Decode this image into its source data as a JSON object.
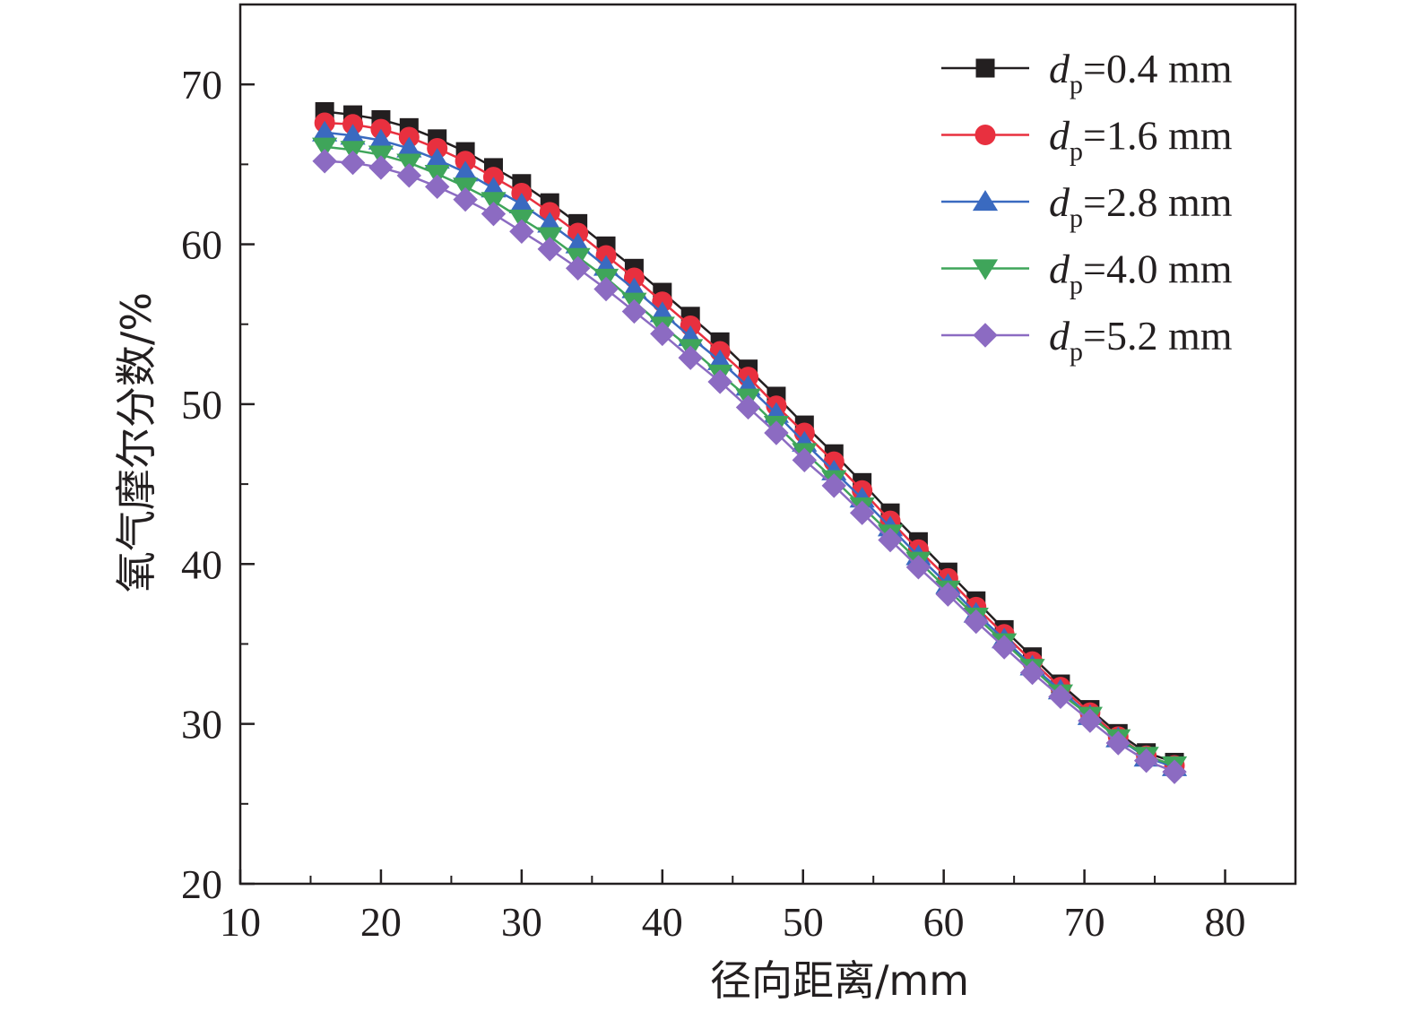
{
  "chart_data": {
    "type": "line",
    "xlabel": "径向距离/mm",
    "ylabel": "氧气摩尔分数/%",
    "xlim": [
      10,
      85
    ],
    "ylim": [
      20,
      75
    ],
    "xticks": [
      10,
      20,
      30,
      40,
      50,
      60,
      70,
      80
    ],
    "yticks": [
      20,
      30,
      40,
      50,
      60,
      70
    ],
    "xtick_labels": [
      "10",
      "20",
      "30",
      "40",
      "50",
      "60",
      "70",
      "80"
    ],
    "ytick_labels": [
      "20",
      "30",
      "40",
      "50",
      "60",
      "70"
    ],
    "grid": false,
    "legend_position": "top-right",
    "x": [
      16.0,
      18.0,
      20.0,
      22.0,
      24.0,
      26.0,
      28.0,
      30.0,
      32.0,
      34.0,
      36.0,
      38.0,
      40.0,
      42.0,
      44.1,
      46.1,
      48.1,
      50.1,
      52.2,
      54.2,
      56.2,
      58.2,
      60.3,
      62.3,
      64.3,
      66.3,
      68.3,
      70.4,
      72.4,
      74.4,
      76.4
    ],
    "series": [
      {
        "name": "d",
        "name_sub": "p",
        "name_rest": "=0.4 mm",
        "color": "#231f20",
        "marker": "square",
        "values": [
          68.3,
          68.1,
          67.8,
          67.3,
          66.6,
          65.8,
          64.8,
          63.8,
          62.6,
          61.3,
          59.9,
          58.5,
          57.0,
          55.5,
          53.9,
          52.2,
          50.5,
          48.7,
          46.9,
          45.1,
          43.2,
          41.4,
          39.5,
          37.7,
          35.9,
          34.2,
          32.5,
          30.9,
          29.4,
          28.2,
          27.6
        ]
      },
      {
        "name": "d",
        "name_sub": "p",
        "name_rest": "=1.6 mm",
        "color": "#e8303f",
        "marker": "circle",
        "values": [
          67.6,
          67.5,
          67.2,
          66.7,
          66.0,
          65.2,
          64.2,
          63.2,
          62.0,
          60.7,
          59.3,
          57.9,
          56.4,
          54.9,
          53.3,
          51.7,
          49.9,
          48.2,
          46.4,
          44.6,
          42.7,
          40.9,
          39.1,
          37.3,
          35.6,
          33.9,
          32.3,
          30.7,
          29.2,
          28.0,
          27.4
        ]
      },
      {
        "name": "d",
        "name_sub": "p",
        "name_rest": "=2.8 mm",
        "color": "#3a6ac0",
        "marker": "triangle-up",
        "values": [
          67.0,
          66.8,
          66.5,
          66.0,
          65.3,
          64.5,
          63.5,
          62.5,
          61.3,
          60.0,
          58.6,
          57.2,
          55.7,
          54.2,
          52.7,
          51.1,
          49.4,
          47.6,
          45.8,
          44.1,
          42.3,
          40.5,
          38.7,
          36.9,
          35.3,
          33.6,
          32.1,
          30.5,
          29.1,
          27.9,
          27.3
        ]
      },
      {
        "name": "d",
        "name_sub": "p",
        "name_rest": "=4.0 mm",
        "color": "#3fa55a",
        "marker": "triangle-down",
        "values": [
          66.1,
          65.9,
          65.6,
          65.1,
          64.4,
          63.6,
          62.7,
          61.6,
          60.5,
          59.2,
          57.9,
          56.4,
          54.9,
          53.5,
          51.9,
          50.4,
          48.7,
          47.0,
          45.3,
          43.6,
          41.9,
          40.2,
          38.4,
          36.7,
          35.1,
          33.5,
          31.9,
          30.5,
          29.1,
          28.0,
          27.4
        ]
      },
      {
        "name": "d",
        "name_sub": "p",
        "name_rest": "=5.2 mm",
        "color": "#8c6bc2",
        "marker": "diamond",
        "values": [
          65.2,
          65.1,
          64.8,
          64.3,
          63.6,
          62.8,
          61.9,
          60.8,
          59.7,
          58.5,
          57.2,
          55.8,
          54.4,
          52.9,
          51.4,
          49.8,
          48.2,
          46.5,
          44.9,
          43.2,
          41.5,
          39.8,
          38.1,
          36.4,
          34.8,
          33.2,
          31.7,
          30.2,
          28.8,
          27.7,
          27.0
        ]
      }
    ]
  }
}
